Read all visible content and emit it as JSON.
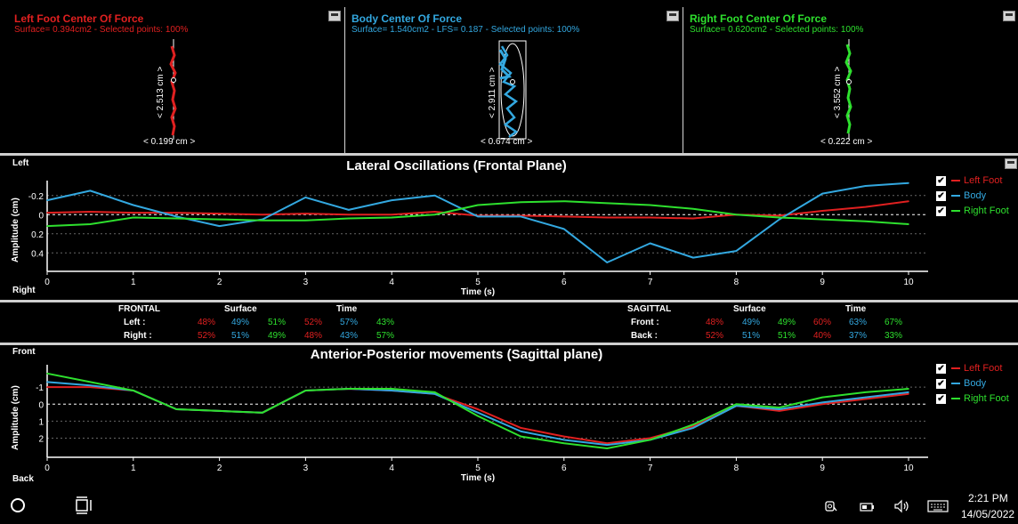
{
  "panels": {
    "left": {
      "title": "Left Foot Center Of Force",
      "sub": "Surface= 0.394cm2 - Selected points: 100%",
      "vdim": "< 2.513 cm >",
      "hdim": "< 0.199 cm >",
      "color": "#e02020"
    },
    "body": {
      "title": "Body Center Of Force",
      "sub": "Surface= 1.540cm2 - LFS= 0.187 - Selected points: 100%",
      "vdim": "< 2.911 cm >",
      "hdim": "< 0.674 cm >",
      "color": "#33a8e0"
    },
    "right": {
      "title": "Right Foot Center Of Force",
      "sub": "Surface= 0.620cm2 - Selected points: 100%",
      "vdim": "< 3.552 cm >",
      "hdim": "< 0.222 cm >",
      "color": "#2ee02e"
    }
  },
  "lateral": {
    "title": "Lateral Oscillations (Frontal Plane)",
    "top_label": "Left",
    "bottom_label": "Right",
    "ylabel": "Amplitude (cm)",
    "xlabel": "Time (s)",
    "yticks": [
      "-0.2",
      "0",
      "0.2",
      "0.4"
    ],
    "xticks": [
      "0",
      "1",
      "2",
      "3",
      "4",
      "5",
      "6",
      "7",
      "8",
      "9",
      "10"
    ]
  },
  "sagittal": {
    "title": "Anterior-Posterior movements (Sagittal plane)",
    "top_label": "Front",
    "bottom_label": "Back",
    "ylabel": "Amplitude (cm)",
    "xlabel": "Time (s)",
    "yticks": [
      "-1",
      "0",
      "1",
      "2"
    ],
    "xticks": [
      "0",
      "1",
      "2",
      "3",
      "4",
      "5",
      "6",
      "7",
      "8",
      "9",
      "10"
    ]
  },
  "legend": {
    "left": "Left Foot",
    "body": "Body",
    "right": "Right Foot",
    "check": "✔"
  },
  "stats": {
    "frontal": {
      "header": "FRONTAL",
      "surface": "Surface",
      "time": "Time",
      "rows": [
        {
          "label": "Left :",
          "vals": [
            "48%",
            "49%",
            "51%",
            "52%",
            "57%",
            "43%"
          ]
        },
        {
          "label": "Right :",
          "vals": [
            "52%",
            "51%",
            "49%",
            "48%",
            "43%",
            "57%"
          ]
        }
      ]
    },
    "sagittal": {
      "header": "SAGITTAL",
      "surface": "Surface",
      "time": "Time",
      "rows": [
        {
          "label": "Front :",
          "vals": [
            "48%",
            "49%",
            "49%",
            "60%",
            "63%",
            "67%"
          ]
        },
        {
          "label": "Back :",
          "vals": [
            "52%",
            "51%",
            "51%",
            "40%",
            "37%",
            "33%"
          ]
        }
      ]
    }
  },
  "stat_colors": [
    "#e02020",
    "#33a8e0",
    "#2ee02e",
    "#e02020",
    "#33a8e0",
    "#2ee02e"
  ],
  "taskbar": {
    "time": "2:21 PM",
    "date": "14/05/2022"
  },
  "chart_data": [
    {
      "type": "line",
      "title": "Lateral Oscillations (Frontal Plane)",
      "xlabel": "Time (s)",
      "ylabel": "Amplitude (cm)",
      "xlim": [
        0,
        10
      ],
      "ylim": [
        -0.3,
        0.5
      ],
      "y_inverted": true,
      "x": [
        0,
        0.5,
        1,
        1.5,
        2,
        2.5,
        3,
        3.5,
        4,
        4.5,
        5,
        5.5,
        6,
        6.5,
        7,
        7.5,
        8,
        8.5,
        9,
        9.5,
        10
      ],
      "series": [
        {
          "name": "Left Foot",
          "color": "#e02020",
          "values": [
            -0.02,
            -0.03,
            -0.02,
            -0.02,
            -0.01,
            0,
            -0.01,
            0,
            0,
            -0.03,
            0.01,
            0.01,
            0.02,
            0.03,
            0.03,
            0.04,
            0,
            0.01,
            -0.04,
            -0.08,
            -0.14
          ]
        },
        {
          "name": "Body",
          "color": "#33a8e0",
          "values": [
            -0.15,
            -0.25,
            -0.1,
            0.02,
            0.12,
            0.05,
            -0.18,
            -0.05,
            -0.15,
            -0.2,
            0.02,
            0.02,
            0.15,
            0.5,
            0.3,
            0.45,
            0.38,
            0.05,
            -0.22,
            -0.3,
            -0.33
          ]
        },
        {
          "name": "Right Foot",
          "color": "#2ee02e",
          "values": [
            0.12,
            0.1,
            0.03,
            0.04,
            0.05,
            0.06,
            0.06,
            0.04,
            0.03,
            0.0,
            -0.1,
            -0.13,
            -0.14,
            -0.12,
            -0.1,
            -0.06,
            0.0,
            0.03,
            0.05,
            0.07,
            0.1
          ]
        }
      ]
    },
    {
      "type": "line",
      "title": "Anterior-Posterior movements (Sagittal plane)",
      "xlabel": "Time (s)",
      "ylabel": "Amplitude (cm)",
      "xlim": [
        0,
        10
      ],
      "ylim": [
        -2,
        2.6
      ],
      "y_inverted": true,
      "x": [
        0,
        0.5,
        1,
        1.5,
        2,
        2.5,
        3,
        3.5,
        4,
        4.5,
        5,
        5.5,
        6,
        6.5,
        7,
        7.5,
        8,
        8.5,
        9,
        9.5,
        10
      ],
      "series": [
        {
          "name": "Left Foot",
          "color": "#e02020",
          "values": [
            -1.0,
            -1.0,
            -0.8,
            0.3,
            0.4,
            0.5,
            -0.8,
            -0.9,
            -0.8,
            -0.6,
            0.3,
            1.4,
            1.9,
            2.3,
            2.0,
            1.3,
            0.1,
            0.4,
            0,
            -0.3,
            -0.6
          ]
        },
        {
          "name": "Body",
          "color": "#33a8e0",
          "values": [
            -1.3,
            -1.1,
            -0.8,
            0.3,
            0.4,
            0.5,
            -0.8,
            -0.9,
            -0.8,
            -0.6,
            0.5,
            1.6,
            2.1,
            2.4,
            2.1,
            1.4,
            0.1,
            0.3,
            -0.1,
            -0.4,
            -0.7
          ]
        },
        {
          "name": "Right Foot",
          "color": "#2ee02e",
          "values": [
            -1.8,
            -1.3,
            -0.8,
            0.3,
            0.4,
            0.5,
            -0.8,
            -0.9,
            -0.9,
            -0.7,
            0.7,
            1.9,
            2.3,
            2.6,
            2.1,
            1.2,
            0.0,
            0.2,
            -0.4,
            -0.7,
            -0.9
          ]
        }
      ]
    }
  ]
}
